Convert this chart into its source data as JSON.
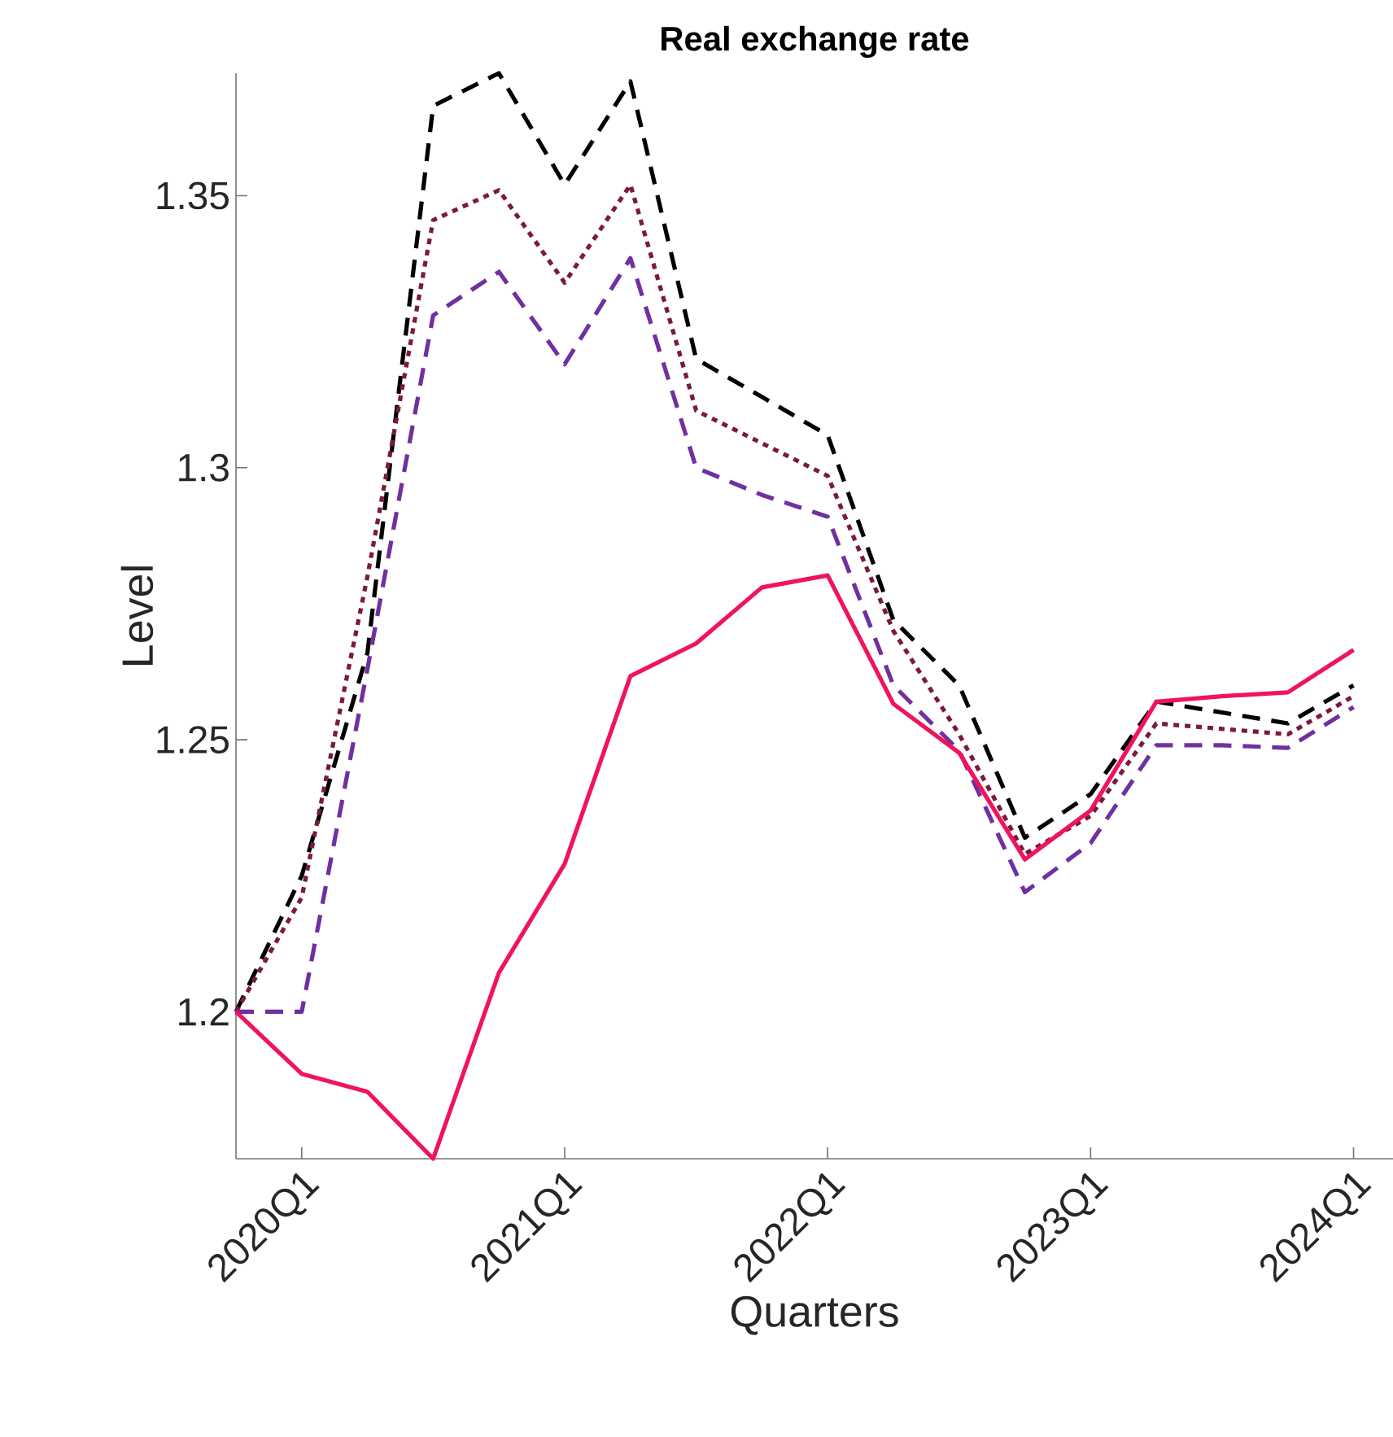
{
  "chart_data": {
    "type": "line",
    "title": "Real exchange rate",
    "xlabel": "Quarters",
    "ylabel": "Level",
    "categories": [
      null,
      "2020Q1",
      null,
      null,
      null,
      "2021Q1",
      null,
      null,
      null,
      "2022Q1",
      null,
      null,
      null,
      "2023Q1",
      null,
      null,
      null,
      "2024Q1"
    ],
    "ylim": [
      1.173,
      1.3725
    ],
    "yticks": [
      1.2,
      1.25,
      1.3,
      1.35
    ],
    "series": [
      {
        "color": "#000000",
        "line_style": "dashed",
        "values": [
          1.2,
          1.225,
          1.266,
          1.3665,
          1.3725,
          1.352,
          1.371,
          1.32,
          1.313,
          1.306,
          1.272,
          1.26,
          1.232,
          1.24,
          1.257,
          1.255,
          1.253,
          1.26
        ]
      },
      {
        "color": "#7b1a3e",
        "line_style": "dotted",
        "values": [
          1.2,
          1.221,
          1.28,
          1.3455,
          1.351,
          1.334,
          1.352,
          1.3105,
          1.3045,
          1.2985,
          1.27,
          1.251,
          1.229,
          1.236,
          1.253,
          1.252,
          1.251,
          1.258
        ]
      },
      {
        "color": "#7030a0",
        "line_style": "dashed",
        "values": [
          1.2,
          1.2,
          1.263,
          1.328,
          1.336,
          1.319,
          1.3385,
          1.3,
          1.295,
          1.291,
          1.26,
          1.248,
          1.222,
          1.231,
          1.249,
          1.249,
          1.2485,
          1.256
        ]
      },
      {
        "color": "#f0145a",
        "line_style": "solid",
        "values": [
          1.2,
          1.1886,
          1.1853,
          1.173,
          1.2072,
          1.2272,
          1.2617,
          1.2677,
          1.278,
          1.2802,
          1.2566,
          1.2476,
          1.228,
          1.237,
          1.257,
          1.258,
          1.2587,
          1.2665
        ]
      }
    ]
  }
}
